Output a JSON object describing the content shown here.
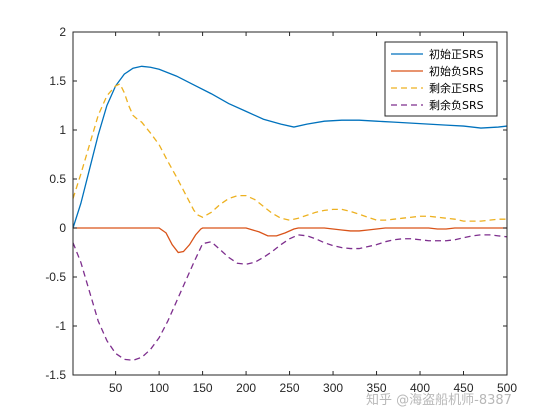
{
  "chart_data": {
    "type": "line",
    "xlim": [
      1,
      500
    ],
    "ylim": [
      -1.5,
      2
    ],
    "xticks": [
      50,
      100,
      150,
      200,
      250,
      300,
      350,
      400,
      450,
      500
    ],
    "yticks": [
      -1.5,
      -1,
      -0.5,
      0,
      0.5,
      1,
      1.5,
      2
    ],
    "ytick_labels": [
      "-1.5",
      "-1",
      "-0.5",
      "0",
      "0.5",
      "1",
      "1.5",
      "2"
    ],
    "grid": false,
    "legend_position": "top-right",
    "series": [
      {
        "name": "初始正SRS",
        "color": "#0072BD",
        "dash": "solid",
        "x": [
          1,
          10,
          20,
          30,
          40,
          50,
          60,
          70,
          80,
          90,
          100,
          120,
          140,
          160,
          180,
          200,
          220,
          240,
          255,
          270,
          290,
          310,
          330,
          350,
          370,
          390,
          410,
          430,
          450,
          470,
          490,
          500
        ],
        "y": [
          0.0,
          0.25,
          0.6,
          0.95,
          1.25,
          1.45,
          1.57,
          1.63,
          1.65,
          1.64,
          1.62,
          1.55,
          1.46,
          1.37,
          1.27,
          1.19,
          1.11,
          1.06,
          1.03,
          1.06,
          1.09,
          1.1,
          1.1,
          1.09,
          1.08,
          1.07,
          1.06,
          1.05,
          1.04,
          1.02,
          1.03,
          1.04
        ]
      },
      {
        "name": "初始负SRS",
        "color": "#D95319",
        "dash": "solid",
        "x": [
          1,
          50,
          100,
          108,
          115,
          122,
          128,
          135,
          142,
          148,
          150,
          180,
          200,
          215,
          225,
          235,
          245,
          255,
          260,
          290,
          300,
          310,
          320,
          330,
          340,
          350,
          360,
          370,
          390,
          410,
          420,
          430,
          440,
          450,
          460,
          470,
          480,
          490,
          500
        ],
        "y": [
          0,
          0,
          0,
          -0.05,
          -0.17,
          -0.25,
          -0.24,
          -0.17,
          -0.07,
          -0.01,
          0,
          0,
          0,
          -0.04,
          -0.08,
          -0.08,
          -0.05,
          -0.01,
          0,
          0,
          -0.01,
          -0.02,
          -0.03,
          -0.03,
          -0.02,
          -0.01,
          0,
          0,
          0,
          0,
          -0.01,
          -0.01,
          0,
          0,
          0,
          0,
          0,
          0,
          0
        ]
      },
      {
        "name": "剩余正SRS",
        "color": "#EDB120",
        "dash": "dashed",
        "x": [
          1,
          10,
          20,
          30,
          40,
          50,
          55,
          60,
          65,
          70,
          75,
          80,
          90,
          100,
          110,
          120,
          130,
          140,
          145,
          150,
          160,
          170,
          180,
          190,
          200,
          210,
          220,
          230,
          240,
          250,
          260,
          270,
          280,
          290,
          300,
          310,
          320,
          330,
          340,
          350,
          360,
          370,
          380,
          390,
          400,
          410,
          420,
          430,
          440,
          450,
          460,
          470,
          480,
          490,
          500
        ],
        "y": [
          0.3,
          0.55,
          0.85,
          1.15,
          1.35,
          1.45,
          1.47,
          1.38,
          1.25,
          1.15,
          1.11,
          1.08,
          0.97,
          0.85,
          0.68,
          0.52,
          0.35,
          0.18,
          0.13,
          0.11,
          0.16,
          0.24,
          0.3,
          0.33,
          0.33,
          0.29,
          0.22,
          0.15,
          0.1,
          0.08,
          0.1,
          0.13,
          0.16,
          0.18,
          0.19,
          0.19,
          0.17,
          0.14,
          0.11,
          0.08,
          0.08,
          0.09,
          0.1,
          0.11,
          0.12,
          0.12,
          0.11,
          0.1,
          0.09,
          0.07,
          0.07,
          0.07,
          0.08,
          0.09,
          0.09
        ]
      },
      {
        "name": "剩余负SRS",
        "color": "#7E2F8E",
        "dash": "dashed",
        "x": [
          1,
          10,
          20,
          30,
          40,
          50,
          60,
          70,
          80,
          90,
          100,
          110,
          120,
          130,
          140,
          150,
          160,
          170,
          180,
          190,
          200,
          210,
          220,
          230,
          240,
          250,
          260,
          270,
          280,
          290,
          300,
          310,
          320,
          330,
          340,
          350,
          360,
          370,
          380,
          390,
          400,
          410,
          420,
          430,
          440,
          450,
          460,
          470,
          480,
          490,
          500
        ],
        "y": [
          -0.15,
          -0.35,
          -0.65,
          -0.95,
          -1.15,
          -1.28,
          -1.34,
          -1.35,
          -1.32,
          -1.24,
          -1.12,
          -0.95,
          -0.75,
          -0.55,
          -0.35,
          -0.16,
          -0.14,
          -0.22,
          -0.3,
          -0.36,
          -0.37,
          -0.35,
          -0.3,
          -0.24,
          -0.17,
          -0.11,
          -0.07,
          -0.08,
          -0.11,
          -0.15,
          -0.18,
          -0.2,
          -0.21,
          -0.21,
          -0.19,
          -0.17,
          -0.14,
          -0.12,
          -0.11,
          -0.11,
          -0.12,
          -0.13,
          -0.13,
          -0.13,
          -0.12,
          -0.1,
          -0.08,
          -0.07,
          -0.07,
          -0.08,
          -0.09
        ]
      }
    ]
  },
  "watermark": {
    "text": "知乎 @海盗船机师-8387"
  }
}
